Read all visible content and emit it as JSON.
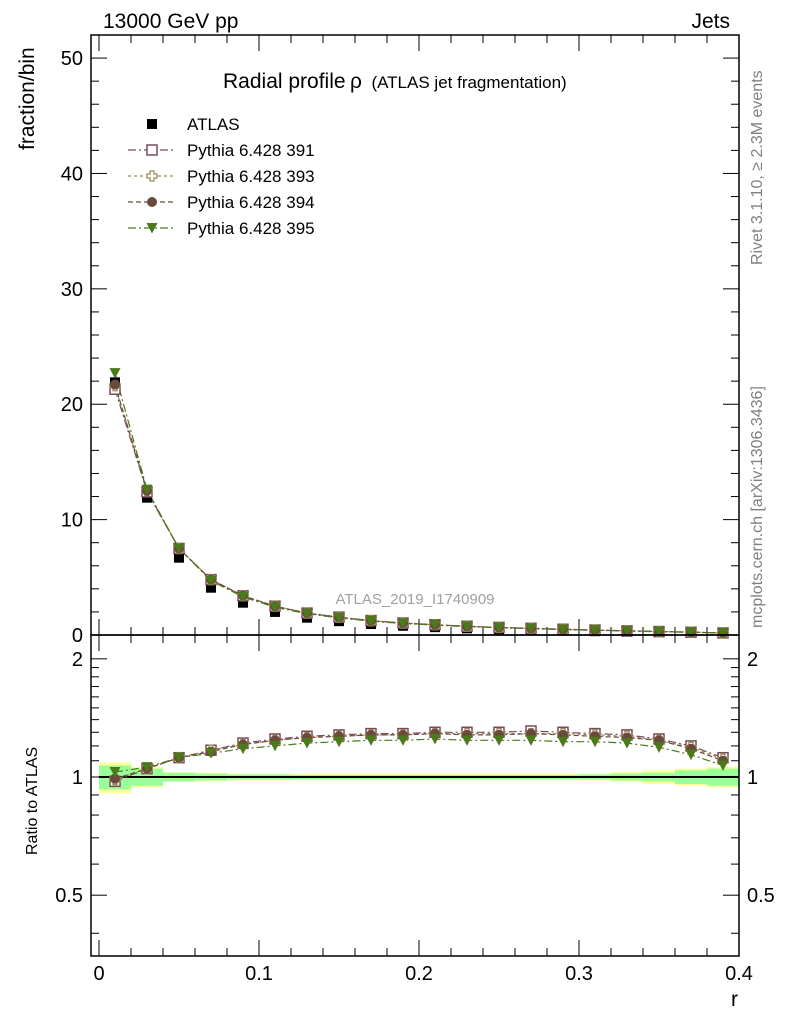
{
  "header": {
    "left": "13000 GeV pp",
    "right": "Jets"
  },
  "side_labels": {
    "rivet": "Rivet 3.1.10, ≥ 2.3M events",
    "mcplots": "mcplots.cern.ch [arXiv:1306.3436]"
  },
  "chart_data": {
    "type": "scatter",
    "title": "Radial profileρ (ATLAS jet fragmentation)",
    "title_main": "Radial profile",
    "title_symbol": "ρ",
    "title_sub": "(ATLAS jet fragmentation)",
    "analysis_label": "ATLAS_2019_I1740909",
    "xlabel": "r",
    "ylabel": "fraction/bin",
    "ratio_ylabel": "Ratio to ATLAS",
    "xlim": [
      -0.005,
      0.4
    ],
    "ylim": [
      0,
      52
    ],
    "ratio_ylim": [
      0.35,
      2.3
    ],
    "ratio_scale": "log",
    "x_ticks": [
      "0",
      "0.1",
      "0.2",
      "0.3",
      "0.4"
    ],
    "x_tick_values": [
      0,
      0.1,
      0.2,
      0.3,
      0.4
    ],
    "y_ticks": [
      "0",
      "10",
      "20",
      "30",
      "40",
      "50"
    ],
    "y_tick_values": [
      0,
      10,
      20,
      30,
      40,
      50
    ],
    "ratio_ticks": [
      "0.5",
      "1",
      "2"
    ],
    "ratio_tick_values": [
      0.5,
      1,
      2
    ],
    "legend_position": "top-left",
    "x": [
      0.01,
      0.03,
      0.05,
      0.07,
      0.09,
      0.11,
      0.13,
      0.15,
      0.17,
      0.19,
      0.21,
      0.23,
      0.25,
      0.27,
      0.29,
      0.31,
      0.33,
      0.35,
      0.37,
      0.39
    ],
    "data": {
      "name": "ATLAS",
      "values": [
        21.9,
        11.9,
        6.7,
        4.1,
        2.8,
        2.0,
        1.5,
        1.2,
        0.95,
        0.8,
        0.68,
        0.58,
        0.5,
        0.44,
        0.38,
        0.33,
        0.28,
        0.24,
        0.2,
        0.16
      ],
      "band_inner": [
        0.07,
        0.05,
        0.025,
        0.02,
        0.015,
        0.015,
        0.012,
        0.012,
        0.012,
        0.012,
        0.012,
        0.012,
        0.012,
        0.012,
        0.012,
        0.015,
        0.02,
        0.025,
        0.04,
        0.05
      ],
      "band_outer": [
        0.09,
        0.06,
        0.03,
        0.025,
        0.02,
        0.02,
        0.018,
        0.018,
        0.018,
        0.018,
        0.018,
        0.018,
        0.018,
        0.018,
        0.018,
        0.02,
        0.03,
        0.04,
        0.05,
        0.06
      ]
    },
    "series": [
      {
        "name": "Pythia 6.428 391",
        "marker": "open-square",
        "color": "#7a4a5a",
        "dash": "8,3,2,3",
        "values": [
          21.3,
          12.4,
          7.5,
          4.8,
          3.4,
          2.5,
          1.9,
          1.55,
          1.25,
          1.04,
          0.89,
          0.76,
          0.66,
          0.58,
          0.5,
          0.43,
          0.36,
          0.3,
          0.24,
          0.18
        ],
        "ratio": [
          0.975,
          1.05,
          1.12,
          1.17,
          1.22,
          1.25,
          1.27,
          1.28,
          1.29,
          1.29,
          1.3,
          1.3,
          1.3,
          1.31,
          1.3,
          1.29,
          1.28,
          1.25,
          1.2,
          1.12
        ]
      },
      {
        "name": "Pythia 6.428 393",
        "marker": "open-cross",
        "color": "#9a8a5a",
        "dash": "3,3",
        "values": [
          21.6,
          12.5,
          7.5,
          4.8,
          3.4,
          2.5,
          1.9,
          1.53,
          1.23,
          1.03,
          0.88,
          0.75,
          0.65,
          0.57,
          0.49,
          0.42,
          0.36,
          0.3,
          0.24,
          0.18
        ],
        "ratio": [
          0.985,
          1.05,
          1.12,
          1.17,
          1.21,
          1.24,
          1.26,
          1.27,
          1.28,
          1.28,
          1.29,
          1.29,
          1.29,
          1.29,
          1.29,
          1.28,
          1.27,
          1.24,
          1.19,
          1.11
        ]
      },
      {
        "name": "Pythia 6.428 394",
        "marker": "filled-circle",
        "color": "#6a4a3a",
        "dash": "5,3",
        "values": [
          21.7,
          12.5,
          7.5,
          4.8,
          3.4,
          2.5,
          1.9,
          1.53,
          1.23,
          1.03,
          0.88,
          0.75,
          0.65,
          0.57,
          0.49,
          0.42,
          0.36,
          0.3,
          0.24,
          0.18
        ],
        "ratio": [
          0.99,
          1.05,
          1.12,
          1.16,
          1.21,
          1.24,
          1.26,
          1.27,
          1.28,
          1.28,
          1.29,
          1.28,
          1.28,
          1.29,
          1.28,
          1.27,
          1.26,
          1.24,
          1.18,
          1.1
        ]
      },
      {
        "name": "Pythia 6.428 395",
        "marker": "filled-triangle-down",
        "color": "#4a7a1a",
        "dash": "8,3,2,3",
        "values": [
          22.7,
          12.6,
          7.5,
          4.7,
          3.3,
          2.4,
          1.85,
          1.48,
          1.2,
          1.0,
          0.86,
          0.73,
          0.63,
          0.55,
          0.47,
          0.41,
          0.35,
          0.29,
          0.23,
          0.17
        ],
        "ratio": [
          1.03,
          1.06,
          1.12,
          1.15,
          1.18,
          1.2,
          1.22,
          1.23,
          1.24,
          1.24,
          1.25,
          1.24,
          1.24,
          1.24,
          1.23,
          1.23,
          1.22,
          1.19,
          1.14,
          1.07
        ]
      }
    ]
  }
}
